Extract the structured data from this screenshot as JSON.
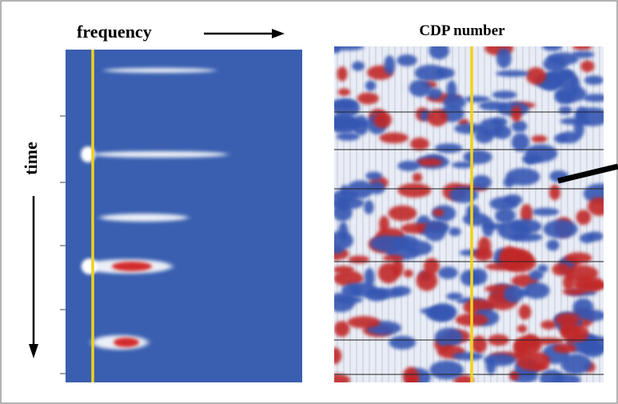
{
  "axis_labels": {
    "frequency": "frequency",
    "cdp_number": "CDP number",
    "time": "time"
  }
}
